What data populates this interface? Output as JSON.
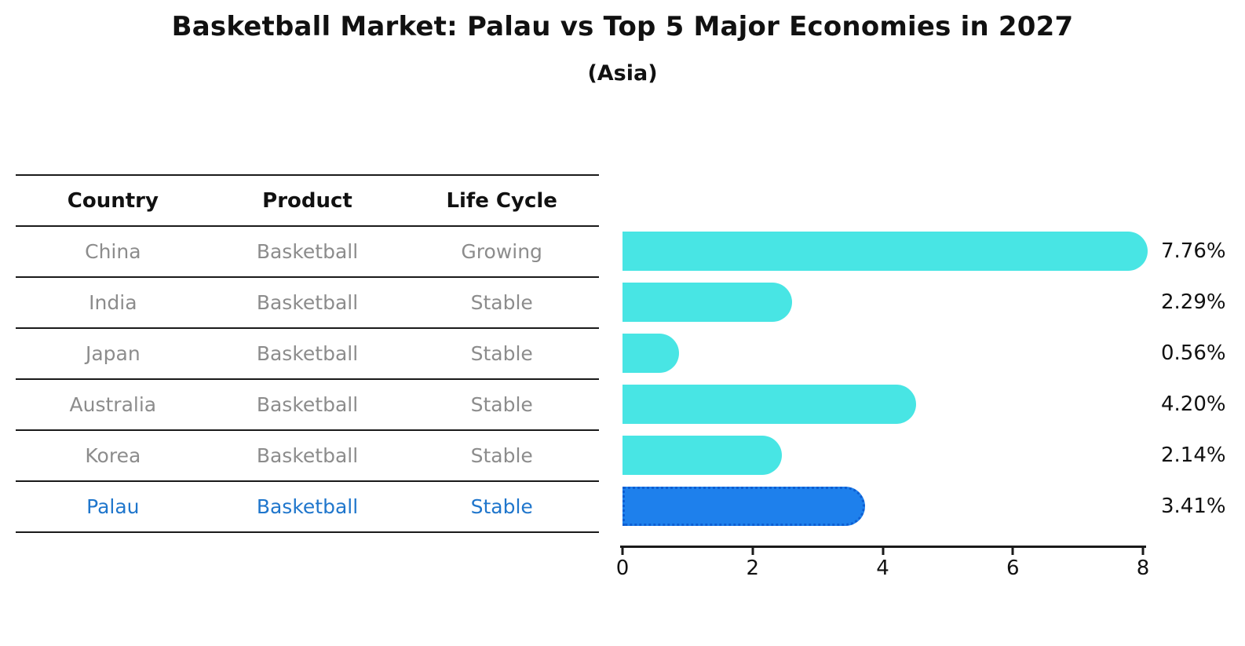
{
  "figure": {
    "title": "Basketball Market: Palau vs Top 5 Major Economies in 2027",
    "subtitle": "(Asia)"
  },
  "table": {
    "headers": [
      "Country",
      "Product",
      "Life Cycle"
    ],
    "rows": [
      {
        "country": "China",
        "product": "Basketball",
        "life_cycle": "Growing",
        "highlight": false
      },
      {
        "country": "India",
        "product": "Basketball",
        "life_cycle": "Stable",
        "highlight": false
      },
      {
        "country": "Japan",
        "product": "Basketball",
        "life_cycle": "Stable",
        "highlight": false
      },
      {
        "country": "Australia",
        "product": "Basketball",
        "life_cycle": "Stable",
        "highlight": false
      },
      {
        "country": "Korea",
        "product": "Basketball",
        "life_cycle": "Stable",
        "highlight": false
      },
      {
        "country": "Palau",
        "product": "Basketball",
        "life_cycle": "Stable",
        "highlight": true
      }
    ]
  },
  "chart_data": {
    "type": "bar",
    "orientation": "horizontal",
    "title": "Basketball Market: Palau vs Top 5 Major Economies in 2027",
    "subtitle": "(Asia)",
    "categories": [
      "China",
      "India",
      "Japan",
      "Australia",
      "Korea",
      "Palau"
    ],
    "values": [
      7.76,
      2.29,
      0.56,
      4.2,
      2.14,
      3.41
    ],
    "value_labels": [
      "7.76%",
      "2.29%",
      "0.56%",
      "4.20%",
      "2.14%",
      "3.41%"
    ],
    "x_ticks": [
      "0",
      "2",
      "4",
      "6",
      "8"
    ],
    "xlim": [
      0,
      8
    ],
    "grid": false,
    "legend_position": "none",
    "bar_color": "#48e5e4",
    "highlight": {
      "index": 5,
      "category": "Palau",
      "bar_color": "#1e80ec",
      "edge_style": "dotted",
      "edge_color": "#0d5ed2",
      "text_color": "#1f76cc"
    }
  }
}
